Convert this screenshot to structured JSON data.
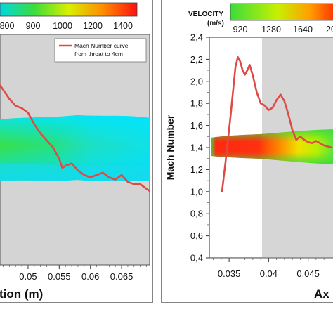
{
  "chart_data": [
    {
      "type": "line",
      "panel": "left",
      "background": "contour-field",
      "xlabel": "tion (m)",
      "x_ticks": [
        "0.05",
        "0.055",
        "0.06",
        "0.065"
      ],
      "x_tick_values": [
        0.05,
        0.055,
        0.06,
        0.065
      ],
      "xlim": [
        0.0455,
        0.0695
      ],
      "colorbar": {
        "tick_labels": [
          "800",
          "900",
          "1000",
          "1200",
          "1400"
        ],
        "colors": [
          "#2b5cff",
          "#00e5ff",
          "#3cdc3c",
          "#f0f000",
          "#ff6a00",
          "#ff0000"
        ]
      },
      "legend": {
        "label_line1": "Mach Number curve",
        "label_line2": "from throat to 4cm",
        "placement": "top-right"
      },
      "series": [
        {
          "color": "#e04a44",
          "x": [
            0.0455,
            0.046,
            0.047,
            0.048,
            0.049,
            0.05,
            0.051,
            0.052,
            0.053,
            0.054,
            0.055,
            0.0555,
            0.056,
            0.057,
            0.058,
            0.059,
            0.06,
            0.061,
            0.062,
            0.063,
            0.064,
            0.065,
            0.066,
            0.067,
            0.068,
            0.069,
            0.0695
          ],
          "y": [
            0.78,
            0.76,
            0.72,
            0.69,
            0.68,
            0.66,
            0.61,
            0.57,
            0.54,
            0.51,
            0.46,
            0.42,
            0.43,
            0.44,
            0.41,
            0.39,
            0.38,
            0.39,
            0.4,
            0.38,
            0.37,
            0.39,
            0.36,
            0.35,
            0.35,
            0.33,
            0.32
          ]
        }
      ]
    },
    {
      "type": "line",
      "panel": "right",
      "background": "contour-field",
      "xlabel": "Ax",
      "ylabel": "Mach Number",
      "x_ticks": [
        "0.035",
        "0.04",
        "0.045"
      ],
      "x_tick_values": [
        0.035,
        0.04,
        0.045
      ],
      "xlim": [
        0.0325,
        0.0485
      ],
      "y_ticks": [
        "0,4",
        "0,6",
        "0,8",
        "1,0",
        "1,2",
        "1,4",
        "1,6",
        "1,8",
        "2,0",
        "2,2",
        "2,4"
      ],
      "ylim": [
        0.4,
        2.4
      ],
      "colorbar": {
        "title": "VELOCITY",
        "units": "(m/s)",
        "tick_labels": [
          "920",
          "1280",
          "1640",
          "20"
        ],
        "colors": [
          "#3cdc3c",
          "#f0f000",
          "#ff6a00",
          "#ff0000"
        ]
      },
      "series": [
        {
          "color": "#e04a44",
          "x": [
            0.0341,
            0.0346,
            0.0352,
            0.0358,
            0.0361,
            0.0364,
            0.0367,
            0.037,
            0.0373,
            0.0376,
            0.038,
            0.0385,
            0.039,
            0.0395,
            0.04,
            0.0405,
            0.041,
            0.0415,
            0.042,
            0.0425,
            0.043,
            0.0435,
            0.044,
            0.0445,
            0.045,
            0.0455,
            0.046,
            0.047,
            0.048
          ],
          "y": [
            1.0,
            1.3,
            1.7,
            2.13,
            2.22,
            2.18,
            2.1,
            2.06,
            2.1,
            2.15,
            2.05,
            1.9,
            1.8,
            1.78,
            1.74,
            1.76,
            1.83,
            1.88,
            1.82,
            1.7,
            1.56,
            1.47,
            1.5,
            1.47,
            1.45,
            1.44,
            1.46,
            1.42,
            1.4
          ]
        }
      ]
    }
  ]
}
